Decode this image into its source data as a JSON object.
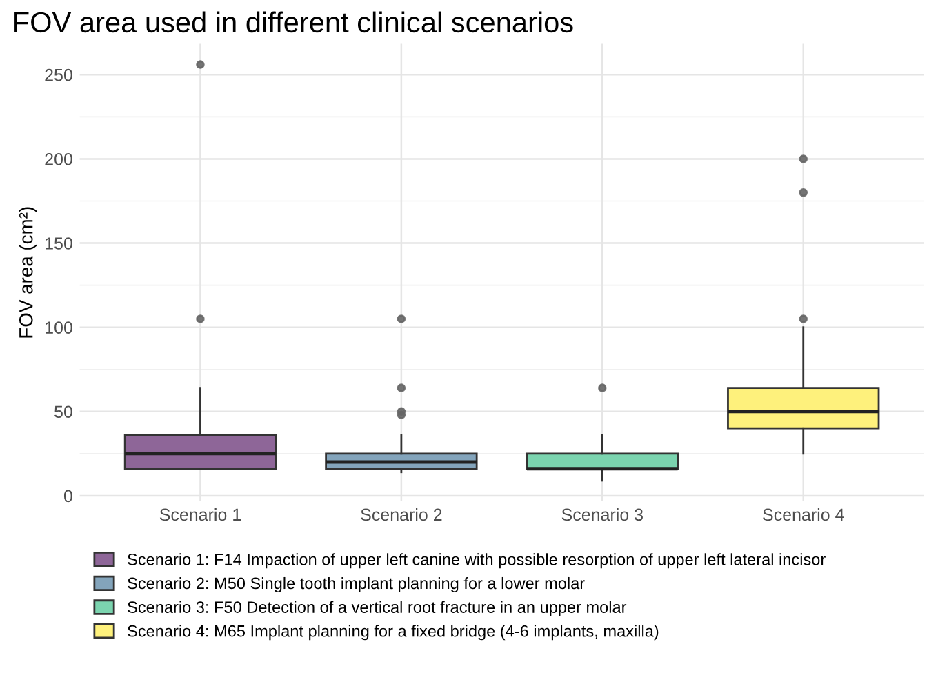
{
  "chart_data": {
    "type": "box",
    "title": "FOV area used in different clinical scenarios",
    "ylabel": "FOV area (cm²)",
    "categories": [
      "Scenario 1",
      "Scenario 2",
      "Scenario 3",
      "Scenario 4"
    ],
    "series": [
      {
        "name": "Scenario 1: F14 Impaction of upper left canine with possible resorption of upper left lateral incisor",
        "color": "#8e6698",
        "boxes": [
          {
            "low": 16,
            "q1": 16,
            "median": 25,
            "q3": 36,
            "high": 64,
            "outliers": [
              105,
              256
            ]
          },
          null,
          null,
          null
        ]
      },
      {
        "name": "Scenario 2: M50 Single tooth implant planning for a lower molar",
        "color": "#83a4bb",
        "boxes": [
          null,
          {
            "low": 14,
            "q1": 16,
            "median": 20,
            "q3": 25,
            "high": 36,
            "outliers": [
              48,
              50,
              64,
              105
            ]
          },
          null,
          null
        ]
      },
      {
        "name": "Scenario 3: F50 Detection of a vertical root fracture in an upper molar",
        "color": "#7bd4af",
        "boxes": [
          null,
          null,
          {
            "low": 9,
            "q1": 16,
            "median": 16,
            "q3": 25,
            "high": 36,
            "outliers": [
              64
            ]
          },
          null
        ]
      },
      {
        "name": "Scenario 4: M65 Implant planning for a fixed bridge (4-6 implants, maxilla)",
        "color": "#fef17c",
        "boxes": [
          null,
          null,
          null,
          {
            "low": 25,
            "q1": 40,
            "median": 50,
            "q3": 64,
            "high": 100,
            "outliers": [
              105,
              180,
              200
            ]
          }
        ]
      }
    ],
    "ylim": [
      -3.35,
      268.35
    ],
    "yticks": [
      0,
      50,
      100,
      150,
      200,
      250
    ],
    "grid": true,
    "legend": "bottom"
  }
}
